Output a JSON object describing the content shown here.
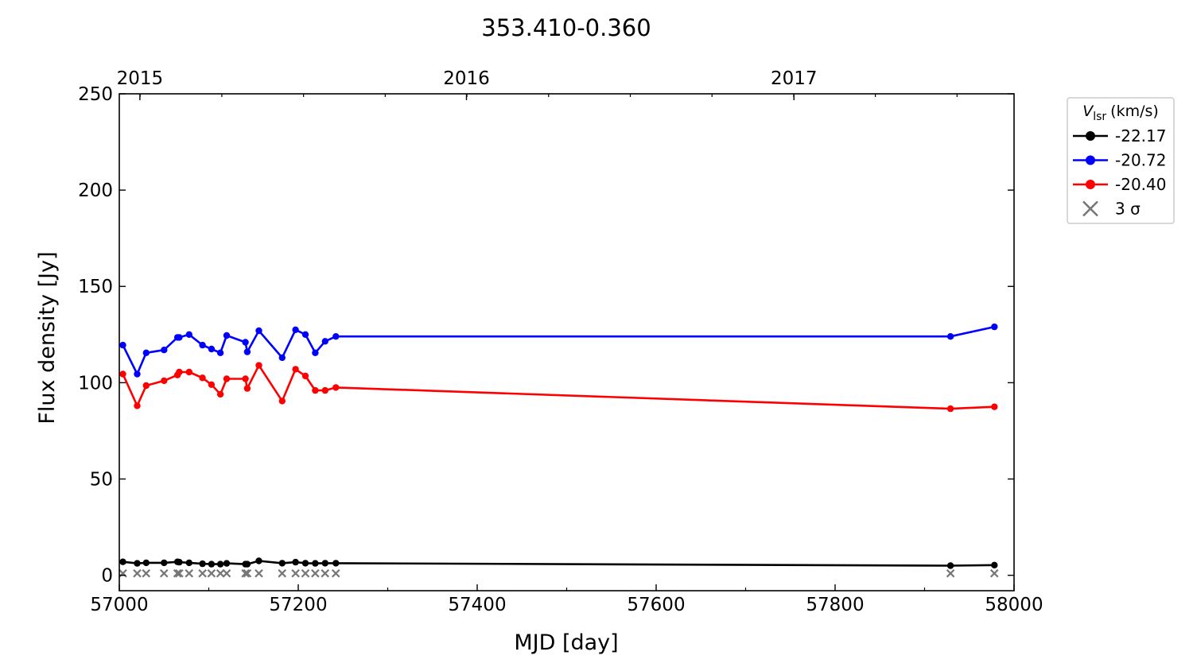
{
  "chart_data": {
    "type": "line",
    "title": "353.410-0.360",
    "xlabel": "MJD [day]",
    "ylabel": "Flux density [Jy]",
    "xlim": [
      57000,
      58000
    ],
    "ylim": [
      -8,
      250
    ],
    "x_ticks": [
      57000,
      57200,
      57400,
      57600,
      57800,
      58000
    ],
    "y_ticks": [
      0,
      50,
      100,
      150,
      200,
      250
    ],
    "top_axis": {
      "labels": [
        "2015",
        "2016",
        "2017"
      ],
      "positions_mjd": [
        57023,
        57388,
        57754
      ]
    },
    "grid": false,
    "legend": {
      "title_main": "V",
      "title_sub": "lsr",
      "title_unit": "(km/s)",
      "placement": "outside-right-top"
    },
    "series": [
      {
        "name": "-22.17",
        "color": "#000000",
        "marker": "circle",
        "x": [
          57004,
          57020,
          57030,
          57050,
          57065,
          57067,
          57078,
          57093,
          57103,
          57113,
          57120,
          57141,
          57143,
          57156,
          57182,
          57197,
          57208,
          57219,
          57230,
          57242,
          57929,
          57978
        ],
        "y": [
          7.0,
          6.2,
          6.5,
          6.5,
          7.0,
          6.8,
          6.5,
          6.0,
          5.8,
          5.8,
          6.2,
          5.8,
          5.8,
          7.5,
          6.3,
          6.8,
          6.3,
          6.2,
          6.3,
          6.3,
          5.0,
          5.3
        ]
      },
      {
        "name": "-20.72",
        "color": "#0000ff",
        "marker": "circle",
        "x": [
          57004,
          57020,
          57030,
          57050,
          57065,
          57067,
          57078,
          57093,
          57103,
          57113,
          57120,
          57141,
          57143,
          57156,
          57182,
          57197,
          57208,
          57219,
          57230,
          57242,
          57929,
          57978
        ],
        "y": [
          119.5,
          104.5,
          115.5,
          117.0,
          123.5,
          123.5,
          125.0,
          119.5,
          117.5,
          115.5,
          124.5,
          121.0,
          116.0,
          127.0,
          113.0,
          127.5,
          125.0,
          115.5,
          121.5,
          124.0,
          124.0,
          129.0
        ]
      },
      {
        "name": "-20.40",
        "color": "#ff0000",
        "marker": "circle",
        "x": [
          57004,
          57020,
          57030,
          57050,
          57065,
          57067,
          57078,
          57093,
          57103,
          57113,
          57120,
          57141,
          57143,
          57156,
          57182,
          57197,
          57208,
          57219,
          57230,
          57242,
          57929,
          57978
        ],
        "y": [
          104.5,
          88.0,
          98.5,
          101.0,
          104.0,
          105.5,
          105.5,
          102.5,
          99.0,
          94.0,
          102.0,
          102.0,
          97.0,
          109.0,
          90.5,
          107.0,
          103.5,
          96.0,
          96.0,
          97.5,
          86.5,
          87.5
        ]
      },
      {
        "name": "3 σ",
        "color": "#777777",
        "marker": "x",
        "line": false,
        "x": [
          57004,
          57020,
          57030,
          57050,
          57065,
          57067,
          57078,
          57093,
          57103,
          57113,
          57120,
          57141,
          57143,
          57156,
          57182,
          57197,
          57208,
          57219,
          57230,
          57242,
          57929,
          57978
        ],
        "y": [
          1,
          1,
          1,
          1,
          1,
          1,
          1,
          1,
          1,
          1,
          1,
          1,
          1,
          1,
          1,
          1,
          1,
          1,
          1,
          1,
          1,
          1
        ]
      }
    ]
  }
}
